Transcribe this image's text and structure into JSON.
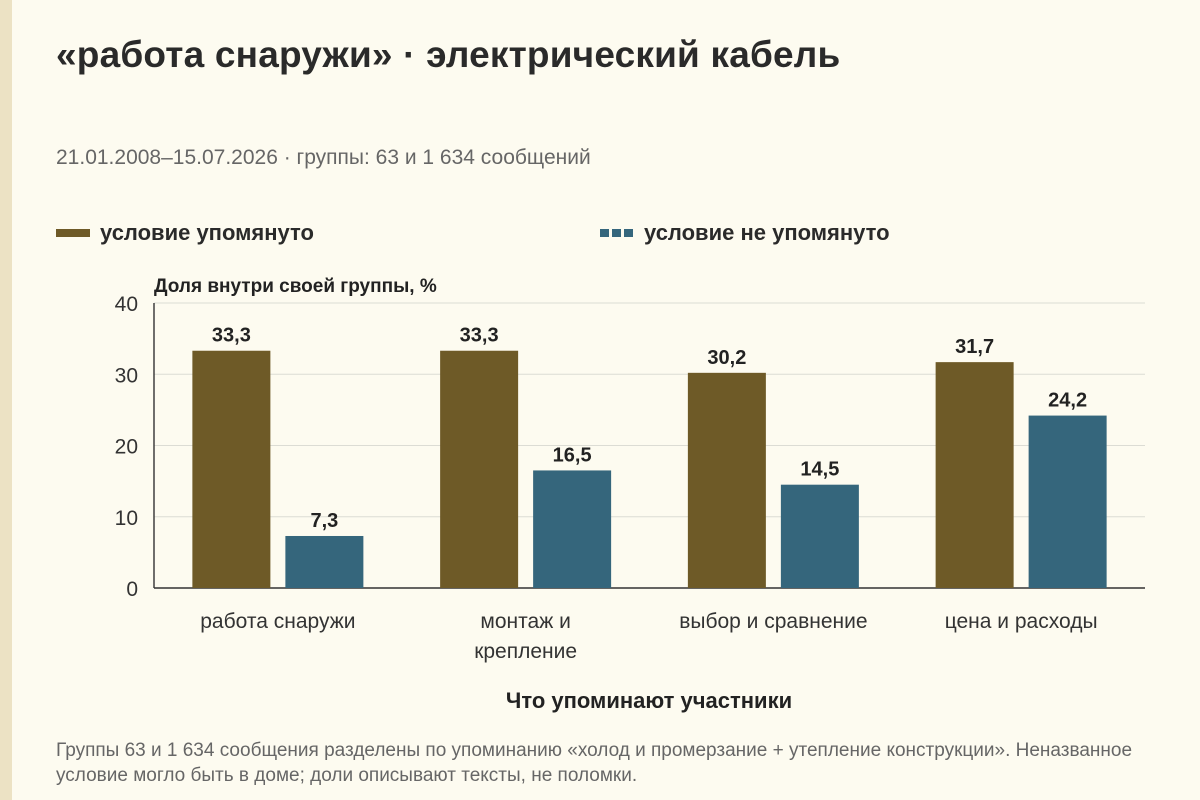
{
  "title": "«работа снаружи» · электрический кабель",
  "subtitle": "21.01.2008–15.07.2026 · группы: 63 и 1 634 сообщений",
  "legend": [
    {
      "label": "условие упомянуто",
      "color": "#6e5a27"
    },
    {
      "label": "условие не упомянуто",
      "color": "#35667c"
    }
  ],
  "footnote": "Группы 63 и 1 634 сообщения разделены по упоминанию «холод и промерзание + утепление конструкции». Неназванное условие могло быть в доме; доли описывают тексты, не поломки.",
  "chart_data": {
    "type": "bar",
    "ylabel": "Доля внутри своей группы, %",
    "xlabel": "Что упоминают участники",
    "ylim": [
      0,
      40
    ],
    "yticks": [
      "0",
      "10",
      "20",
      "30",
      "40"
    ],
    "grid": true,
    "legend_position": "top",
    "categories": [
      [
        "работа снаружи"
      ],
      [
        "монтаж и",
        "крепление"
      ],
      [
        "выбор и сравнение"
      ],
      [
        "цена и расходы"
      ]
    ],
    "series": [
      {
        "name": "условие упомянуто",
        "color": "#6e5a27",
        "values": [
          33.3,
          33.3,
          30.2,
          31.7
        ],
        "labels": [
          "33,3",
          "33,3",
          "30,2",
          "31,7"
        ]
      },
      {
        "name": "условие не упомянуто",
        "color": "#35667c",
        "values": [
          7.3,
          16.5,
          14.5,
          24.2
        ],
        "labels": [
          "7,3",
          "16,5",
          "14,5",
          "24,2"
        ]
      }
    ]
  }
}
